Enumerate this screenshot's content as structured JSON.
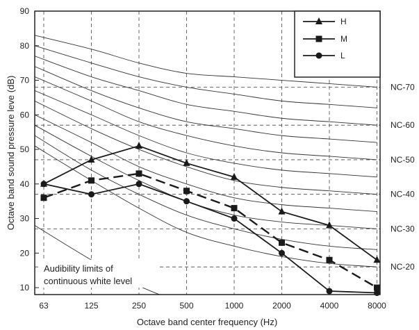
{
  "chart_data": {
    "type": "line",
    "xlabel": "Octave band center frequency (Hz)",
    "ylabel": "Octave band sound pressure leve (dB)",
    "categories": [
      "63",
      "125",
      "250",
      "500",
      "1000",
      "2000",
      "4000",
      "8000"
    ],
    "ylim": [
      8,
      90
    ],
    "yticks": [
      10,
      20,
      30,
      40,
      50,
      60,
      70,
      80,
      90
    ],
    "grid": "dashed",
    "legend_position": "top-right",
    "series": [
      {
        "name": "H",
        "marker": "triangle",
        "dash": "solid",
        "values": [
          40,
          47,
          51,
          46,
          42,
          32,
          28,
          18
        ]
      },
      {
        "name": "M",
        "marker": "square",
        "dash": "dashed",
        "values": [
          36,
          41,
          43,
          38,
          33,
          23,
          18,
          10
        ]
      },
      {
        "name": "L",
        "marker": "circle",
        "dash": "solid",
        "values": [
          40,
          37,
          40,
          35,
          30,
          20,
          9,
          8.5
        ]
      }
    ],
    "nc_curves": [
      {
        "level": 20,
        "values": [
          51,
          41,
          33,
          26,
          22,
          19,
          17,
          16
        ]
      },
      {
        "level": 25,
        "values": [
          54,
          44,
          37,
          31,
          27,
          24,
          22,
          21
        ]
      },
      {
        "level": 30,
        "values": [
          57,
          48,
          41,
          35,
          31,
          29,
          28,
          27
        ]
      },
      {
        "level": 35,
        "values": [
          60,
          52,
          45,
          40,
          36,
          34,
          33,
          32
        ]
      },
      {
        "level": 40,
        "values": [
          64,
          56,
          50,
          45,
          41,
          39,
          38,
          37
        ]
      },
      {
        "level": 45,
        "values": [
          67,
          60,
          54,
          49,
          46,
          44,
          43,
          42
        ]
      },
      {
        "level": 50,
        "values": [
          71,
          64,
          58,
          54,
          51,
          49,
          48,
          47
        ]
      },
      {
        "level": 55,
        "values": [
          74,
          67,
          62,
          58,
          56,
          54,
          53,
          52
        ]
      },
      {
        "level": 60,
        "values": [
          77,
          71,
          67,
          63,
          61,
          59,
          58,
          57
        ]
      },
      {
        "level": 65,
        "values": [
          80,
          75,
          71,
          68,
          66,
          64,
          63,
          62
        ]
      },
      {
        "level": 70,
        "values": [
          83,
          79,
          75,
          72,
          71,
          70,
          69,
          68
        ]
      }
    ],
    "nc_labels": [
      {
        "text": "NC-70",
        "y": 68
      },
      {
        "text": "NC-60",
        "y": 57
      },
      {
        "text": "NC-50",
        "y": 47
      },
      {
        "text": "NC-40",
        "y": 37
      },
      {
        "text": "NC-30",
        "y": 27
      },
      {
        "text": "NC-20",
        "y": 16
      }
    ],
    "audibility_curve": [
      {
        "x": "63",
        "y": 28
      },
      {
        "x": "125",
        "y": 18
      },
      {
        "x": "250",
        "y": 10.5
      },
      {
        "x": "500",
        "y": 5
      }
    ],
    "annotation": {
      "line1": "Audibility limits of",
      "line2": "continuous white level"
    },
    "colors": {
      "series": "#1a1a1a",
      "nc_curves": "#333333",
      "grid": "#444444"
    }
  }
}
